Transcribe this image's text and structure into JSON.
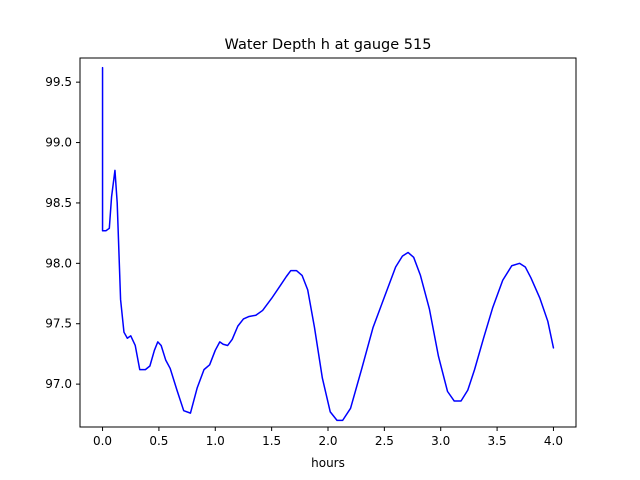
{
  "chart_data": {
    "type": "line",
    "title": "Water Depth h at gauge 515",
    "xlabel": "hours",
    "ylabel": "",
    "xlim": [
      -0.2,
      4.2
    ],
    "ylim": [
      96.645,
      99.7
    ],
    "xticks": [
      0.0,
      0.5,
      1.0,
      1.5,
      2.0,
      2.5,
      3.0,
      3.5,
      4.0
    ],
    "xtick_labels": [
      "0.0",
      "0.5",
      "1.0",
      "1.5",
      "2.0",
      "2.5",
      "3.0",
      "3.5",
      "4.0"
    ],
    "yticks": [
      97.0,
      97.5,
      98.0,
      98.5,
      99.0,
      99.5
    ],
    "ytick_labels": [
      "97.0",
      "97.5",
      "98.0",
      "98.5",
      "99.0",
      "99.5"
    ],
    "grid": false,
    "series": [
      {
        "color": "#0000ff",
        "x": [
          0.0,
          0.0,
          0.0,
          0.03,
          0.06,
          0.08,
          0.11,
          0.13,
          0.16,
          0.19,
          0.22,
          0.25,
          0.29,
          0.33,
          0.38,
          0.42,
          0.46,
          0.49,
          0.52,
          0.56,
          0.6,
          0.66,
          0.72,
          0.78,
          0.84,
          0.9,
          0.95,
          1.0,
          1.04,
          1.07,
          1.11,
          1.15,
          1.2,
          1.25,
          1.3,
          1.36,
          1.42,
          1.5,
          1.58,
          1.63,
          1.67,
          1.72,
          1.77,
          1.82,
          1.88,
          1.95,
          2.02,
          2.08,
          2.13,
          2.2,
          2.3,
          2.4,
          2.5,
          2.6,
          2.66,
          2.71,
          2.76,
          2.82,
          2.9,
          2.98,
          3.06,
          3.12,
          3.18,
          3.24,
          3.3,
          3.38,
          3.46,
          3.55,
          3.63,
          3.7,
          3.75,
          3.8,
          3.88,
          3.95,
          4.0
        ],
        "y": [
          99.62,
          98.27,
          98.27,
          98.27,
          98.29,
          98.55,
          98.77,
          98.5,
          97.7,
          97.43,
          97.38,
          97.4,
          97.32,
          97.12,
          97.12,
          97.15,
          97.28,
          97.35,
          97.32,
          97.2,
          97.13,
          96.95,
          96.78,
          96.76,
          96.97,
          97.12,
          97.16,
          97.28,
          97.35,
          97.33,
          97.32,
          97.37,
          97.48,
          97.54,
          97.56,
          97.57,
          97.61,
          97.71,
          97.82,
          97.89,
          97.94,
          97.94,
          97.9,
          97.78,
          97.47,
          97.05,
          96.77,
          96.7,
          96.7,
          96.8,
          97.13,
          97.47,
          97.72,
          97.97,
          98.06,
          98.09,
          98.05,
          97.9,
          97.62,
          97.23,
          96.94,
          96.86,
          96.86,
          96.95,
          97.12,
          97.38,
          97.63,
          97.86,
          97.98,
          98.0,
          97.97,
          97.88,
          97.71,
          97.52,
          97.3
        ]
      }
    ]
  }
}
